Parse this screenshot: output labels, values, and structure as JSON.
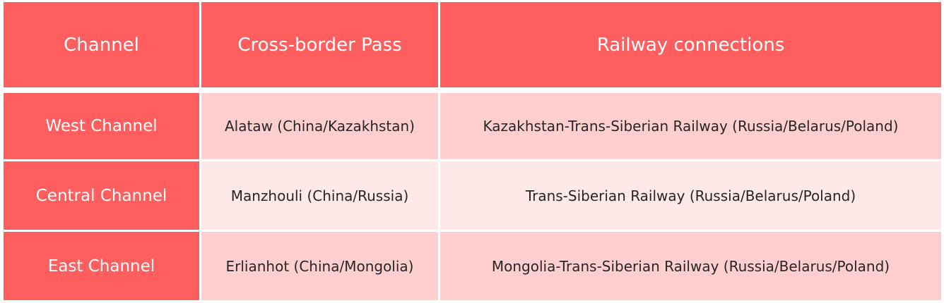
{
  "table": {
    "headers": [
      "Channel",
      "Cross-border Pass",
      "Railway connections"
    ],
    "rows": [
      [
        "West Channel",
        "Alataw (China/Kazakhstan)",
        "Kazakhstan-Trans-Siberian Railway (Russia/Belarus/Poland)"
      ],
      [
        "Central Channel",
        "Manzhouli (China/Russia)",
        "Trans-Siberian Railway (Russia/Belarus/Poland)"
      ],
      [
        "East Channel",
        "Erlianhot (China/Mongolia)",
        "Mongolia-Trans-Siberian Railway (Russia/Belarus/Poland)"
      ]
    ],
    "colors": {
      "header": "#ff5e5f",
      "row_odd": "#ffcfcf",
      "row_even": "#ffe8e8"
    }
  }
}
